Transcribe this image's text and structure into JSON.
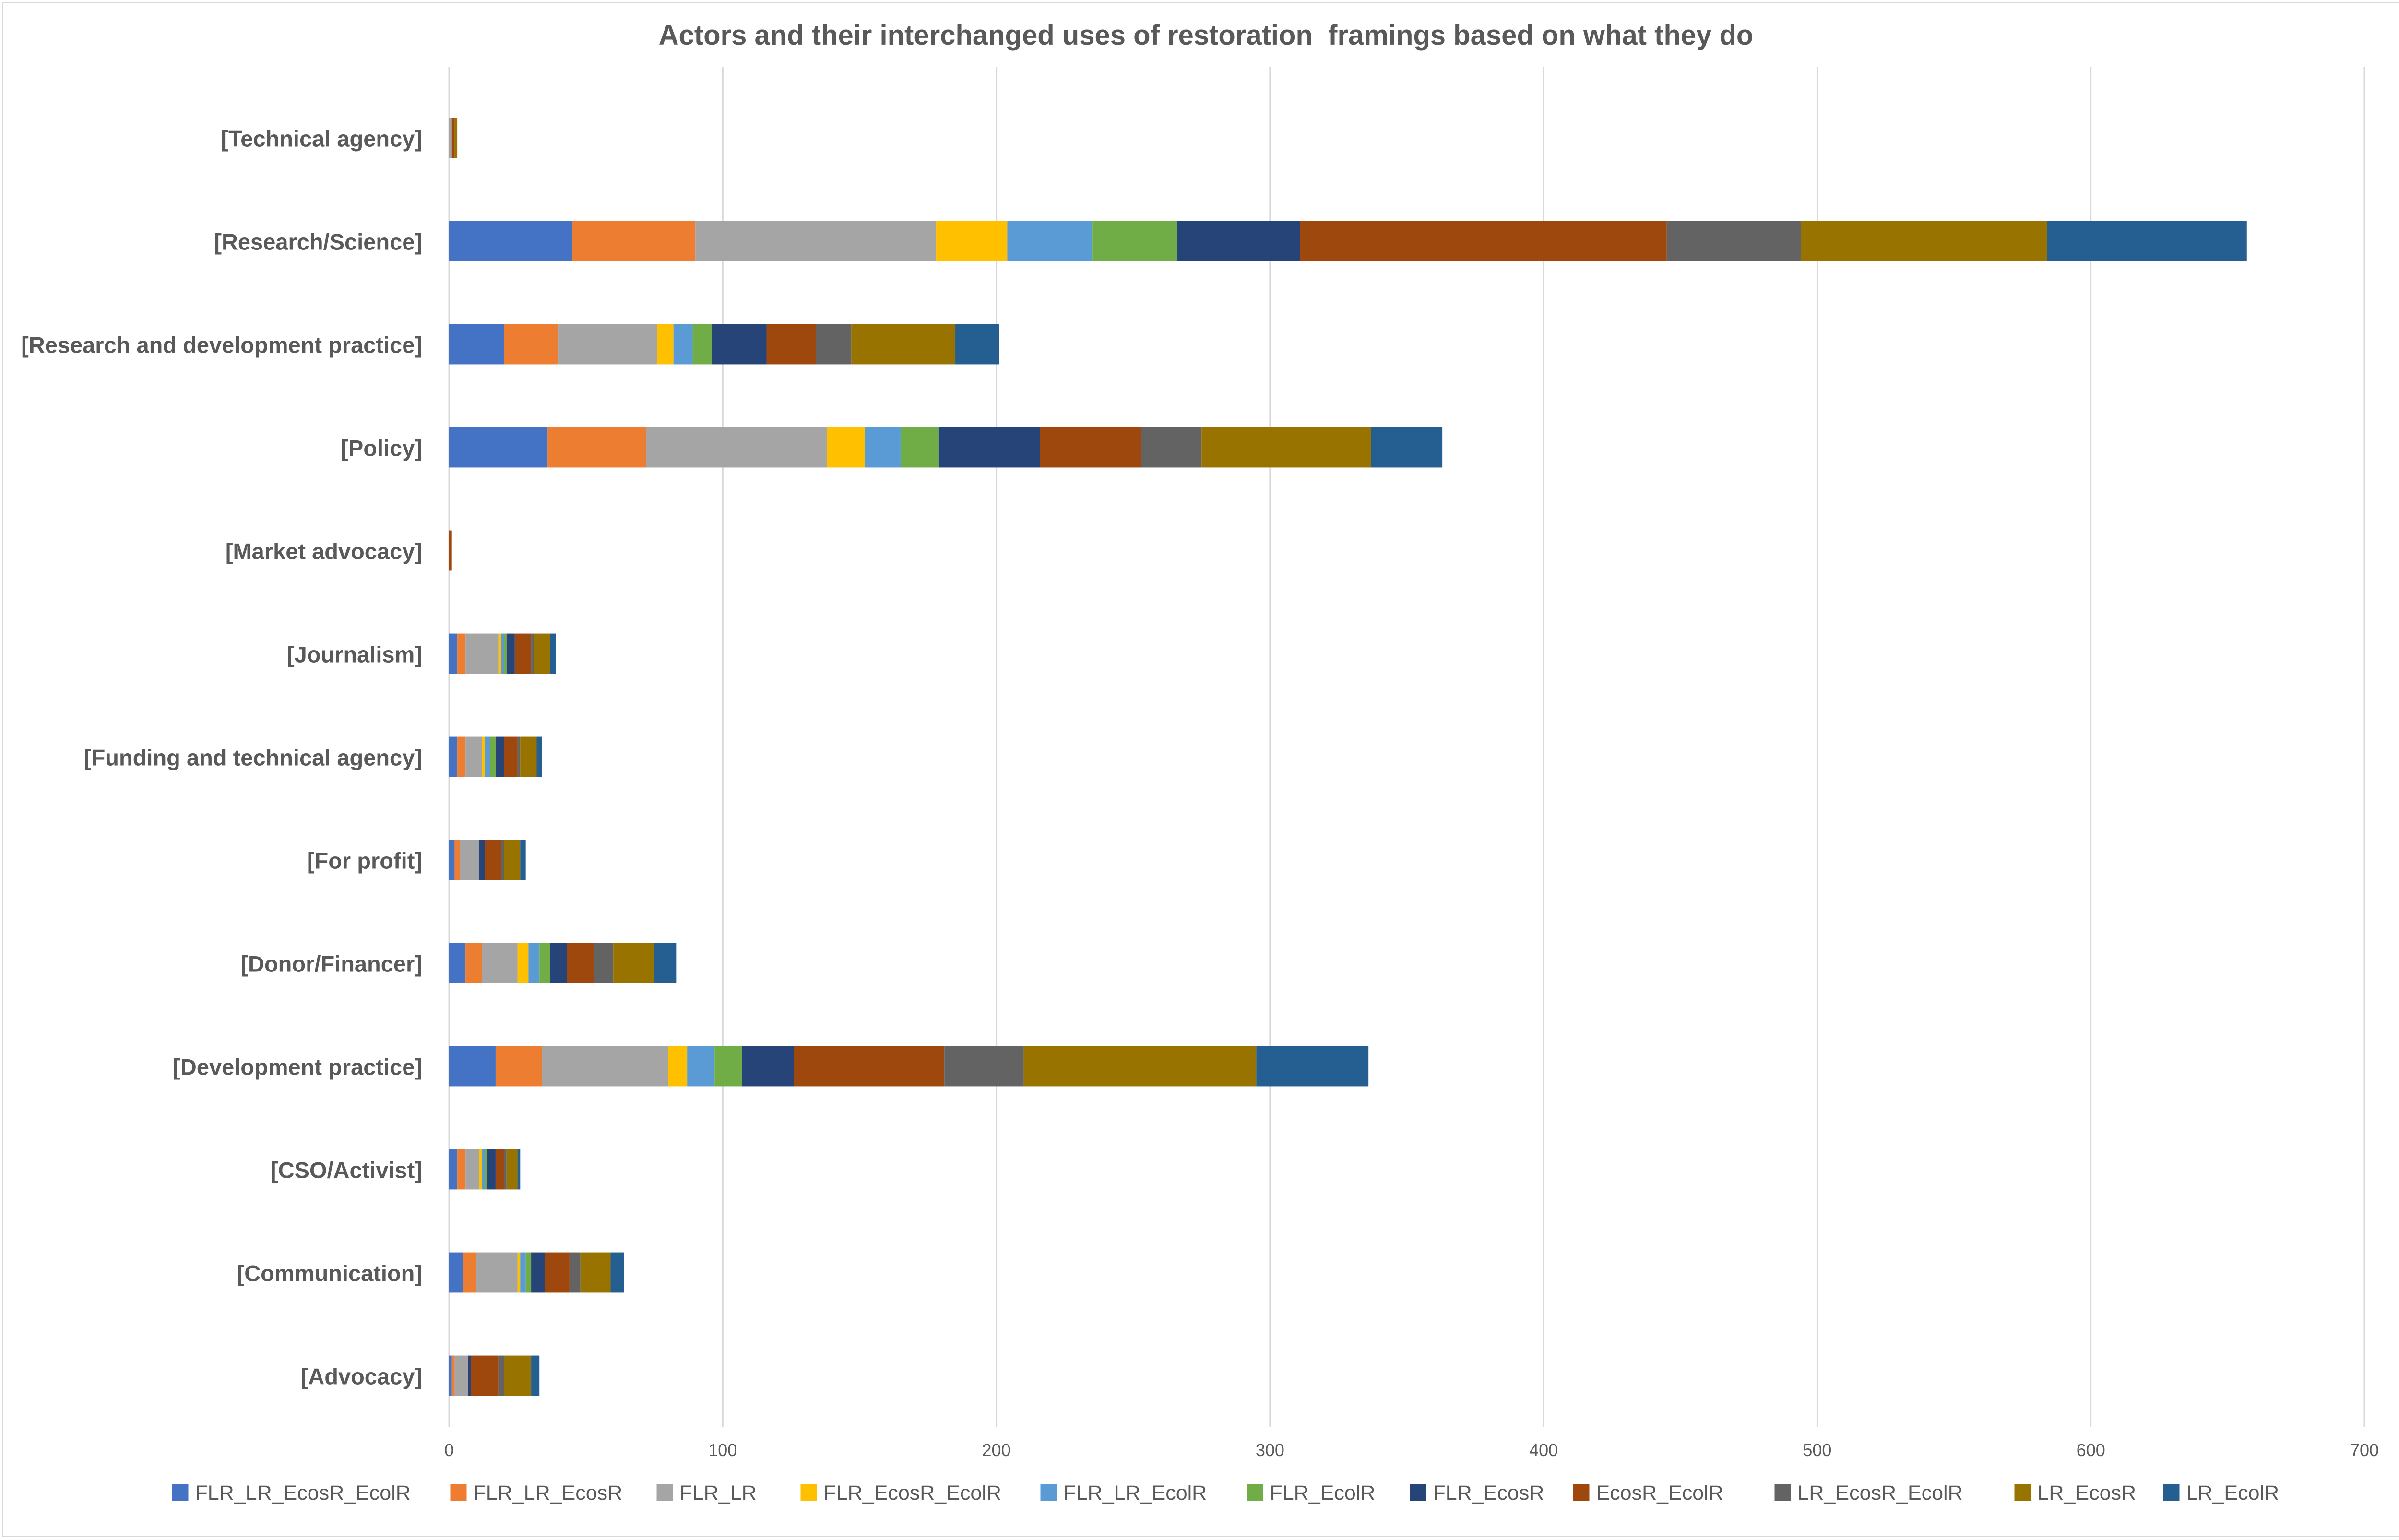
{
  "chart_data": {
    "type": "bar",
    "orientation": "horizontal",
    "stacked": true,
    "title": "Actors and their interchanged uses of restoration  framings based on what they do",
    "xlabel": "",
    "ylabel": "",
    "xlim": [
      0,
      700
    ],
    "xticks": [
      0,
      100,
      200,
      300,
      400,
      500,
      600,
      700
    ],
    "grid": "vertical",
    "legend_position": "bottom",
    "categories": [
      "[Technical agency]",
      "[Research/Science]",
      "[Research and development practice]",
      "[Policy]",
      "[Market advocacy]",
      "[Journalism]",
      "[Funding and technical agency]",
      "[For profit]",
      "[Donor/Financer]",
      "[Development practice]",
      "[CSO/Activist]",
      "[Communication]",
      "[Advocacy]"
    ],
    "series": [
      {
        "name": "FLR_LR_EcosR_EcolR",
        "color": "#4472C4",
        "values": [
          0,
          45,
          20,
          36,
          0,
          3,
          3,
          2,
          6,
          17,
          3,
          5,
          1
        ]
      },
      {
        "name": "FLR_LR_EcosR",
        "color": "#ED7D31",
        "values": [
          0,
          45,
          20,
          36,
          0,
          3,
          3,
          2,
          6,
          17,
          3,
          5,
          1
        ]
      },
      {
        "name": "FLR_LR",
        "color": "#A5A5A5",
        "values": [
          1,
          88,
          36,
          66,
          0,
          12,
          6,
          7,
          13,
          46,
          5,
          15,
          5
        ]
      },
      {
        "name": "FLR_EcosR_EcolR",
        "color": "#FFC000",
        "values": [
          0,
          26,
          6,
          14,
          0,
          1,
          1,
          0,
          4,
          7,
          1,
          1,
          0
        ]
      },
      {
        "name": "FLR_LR_EcolR",
        "color": "#5B9BD5",
        "values": [
          0,
          31,
          7,
          13,
          0,
          1,
          2,
          0,
          4,
          10,
          1,
          2,
          0
        ]
      },
      {
        "name": "FLR_EcolR",
        "color": "#70AD47",
        "values": [
          0,
          31,
          7,
          14,
          0,
          1,
          2,
          0,
          4,
          10,
          1,
          2,
          0
        ]
      },
      {
        "name": "FLR_EcosR",
        "color": "#264478",
        "values": [
          0,
          45,
          20,
          37,
          0,
          3,
          3,
          2,
          6,
          19,
          3,
          5,
          1
        ]
      },
      {
        "name": "EcosR_EcolR",
        "color": "#9E480E",
        "values": [
          1,
          134,
          18,
          37,
          1,
          6,
          5,
          6,
          10,
          55,
          3,
          9,
          10
        ]
      },
      {
        "name": "LR_EcosR_EcolR",
        "color": "#636363",
        "values": [
          0,
          49,
          13,
          22,
          0,
          1,
          1,
          1,
          7,
          29,
          1,
          4,
          2
        ]
      },
      {
        "name": "LR_EcosR",
        "color": "#997300",
        "values": [
          1,
          90,
          38,
          62,
          0,
          6,
          6,
          6,
          15,
          85,
          4,
          11,
          10
        ]
      },
      {
        "name": "LR_EcolR",
        "color": "#255E91",
        "values": [
          0,
          73,
          16,
          26,
          0,
          2,
          2,
          2,
          8,
          41,
          1,
          5,
          3
        ]
      }
    ]
  }
}
